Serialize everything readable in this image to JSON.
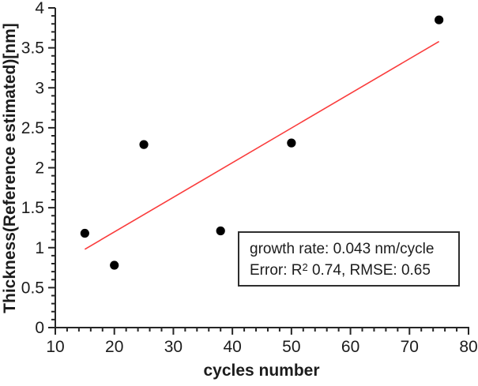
{
  "chart_data": {
    "type": "scatter",
    "title": "",
    "xlabel": "cycles number",
    "ylabel": "Thickness(Reference estimated)[nm]",
    "xlim": [
      10,
      80
    ],
    "ylim": [
      0,
      4
    ],
    "x_major_ticks": [
      10,
      20,
      30,
      40,
      50,
      60,
      70,
      80
    ],
    "x_tick_labels": [
      "10",
      "20",
      "30",
      "40",
      "50",
      "60",
      "70",
      "80"
    ],
    "x_minor_step": 2,
    "y_major_ticks": [
      0,
      0.5,
      1,
      1.5,
      2,
      2.5,
      3,
      3.5,
      4
    ],
    "y_tick_labels": [
      "0",
      "0.5",
      "1",
      "1.5",
      "2",
      "2.5",
      "3",
      "3.5",
      "4"
    ],
    "y_minor_step": 0.1,
    "grid": false,
    "legend_position": "none",
    "points": [
      {
        "x": 15,
        "y": 1.18
      },
      {
        "x": 20,
        "y": 0.78
      },
      {
        "x": 25,
        "y": 2.29
      },
      {
        "x": 38,
        "y": 1.21
      },
      {
        "x": 50,
        "y": 2.31
      },
      {
        "x": 75,
        "y": 3.85
      }
    ],
    "fit_line": {
      "x1": 15,
      "y1": 0.98,
      "x2": 75,
      "y2": 3.58
    },
    "colors": {
      "marker": "#000000",
      "fit_line": "#fa3c3c",
      "axis": "#262626",
      "text": "#1c1c1c"
    },
    "annotation": {
      "line1": "growth rate: 0.043 nm/cycle",
      "line2_prefix": "Error: R",
      "line2_sup": "2",
      "line2_rest": " 0.74, RMSE: 0.65",
      "growth_rate_nm_per_cycle": 0.043,
      "r_squared": 0.74,
      "rmse": 0.65
    }
  }
}
